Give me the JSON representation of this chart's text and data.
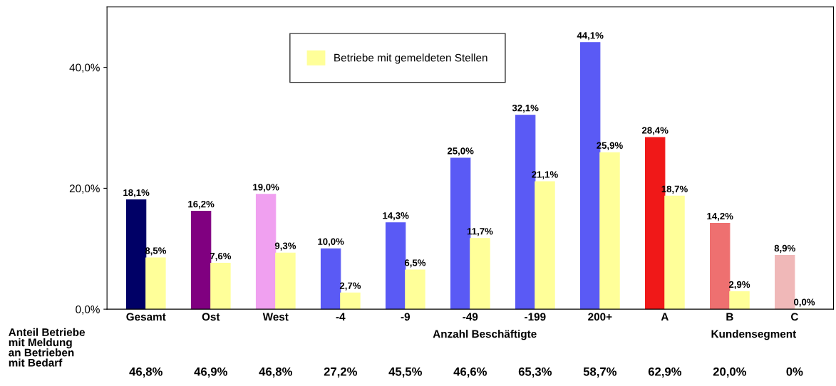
{
  "chart_data": {
    "type": "bar",
    "categories": [
      "Gesamt",
      "Ost",
      "West",
      "-4",
      "-9",
      "-49",
      "-199",
      "200+",
      "A",
      "B",
      "C"
    ],
    "series": [
      {
        "colors": [
          "#000066",
          "#800080",
          "#f0a0f0",
          "#5a5af5",
          "#5a5af5",
          "#5a5af5",
          "#5a5af5",
          "#5a5af5",
          "#f01818",
          "#ee7070",
          "#f0b8b8"
        ],
        "values": [
          18.1,
          16.2,
          19.0,
          10.0,
          14.3,
          25.0,
          32.1,
          44.1,
          28.4,
          14.2,
          8.9
        ],
        "value_labels": [
          "18,1%",
          "16,2%",
          "19,0%",
          "10,0%",
          "14,3%",
          "25,0%",
          "32,1%",
          "44,1%",
          "28,4%",
          "14,2%",
          "8,9%"
        ]
      },
      {
        "name": "Betriebe mit gemeldeten Stellen",
        "color": "#ffff99",
        "values": [
          8.5,
          7.6,
          9.3,
          2.7,
          6.5,
          11.7,
          21.1,
          25.9,
          18.7,
          2.9,
          0.0
        ],
        "value_labels": [
          "8,5%",
          "7,6%",
          "9,3%",
          "2,7%",
          "6,5%",
          "11,7%",
          "21,1%",
          "25,9%",
          "18,7%",
          "2,9%",
          "0,0%"
        ]
      }
    ],
    "ylim": [
      0,
      50
    ],
    "yticks": [
      {
        "value": 0,
        "label": "0,0%"
      },
      {
        "value": 20,
        "label": "20,0%"
      },
      {
        "value": 40,
        "label": "40,0%"
      }
    ],
    "grid": false,
    "legend": "top",
    "annotations": [
      "Anteil Betriebe\nmit Meldung\nan Betrieben\nmit Bedarf",
      "46,8%",
      "46,9%",
      "46,8%",
      "27,2%",
      "45,5%",
      "46,6%",
      "65,3%",
      "58,7%",
      "62,9%",
      "20,0%",
      "0%",
      "Anzahl Beschäftigte",
      "Kundensegment"
    ]
  }
}
